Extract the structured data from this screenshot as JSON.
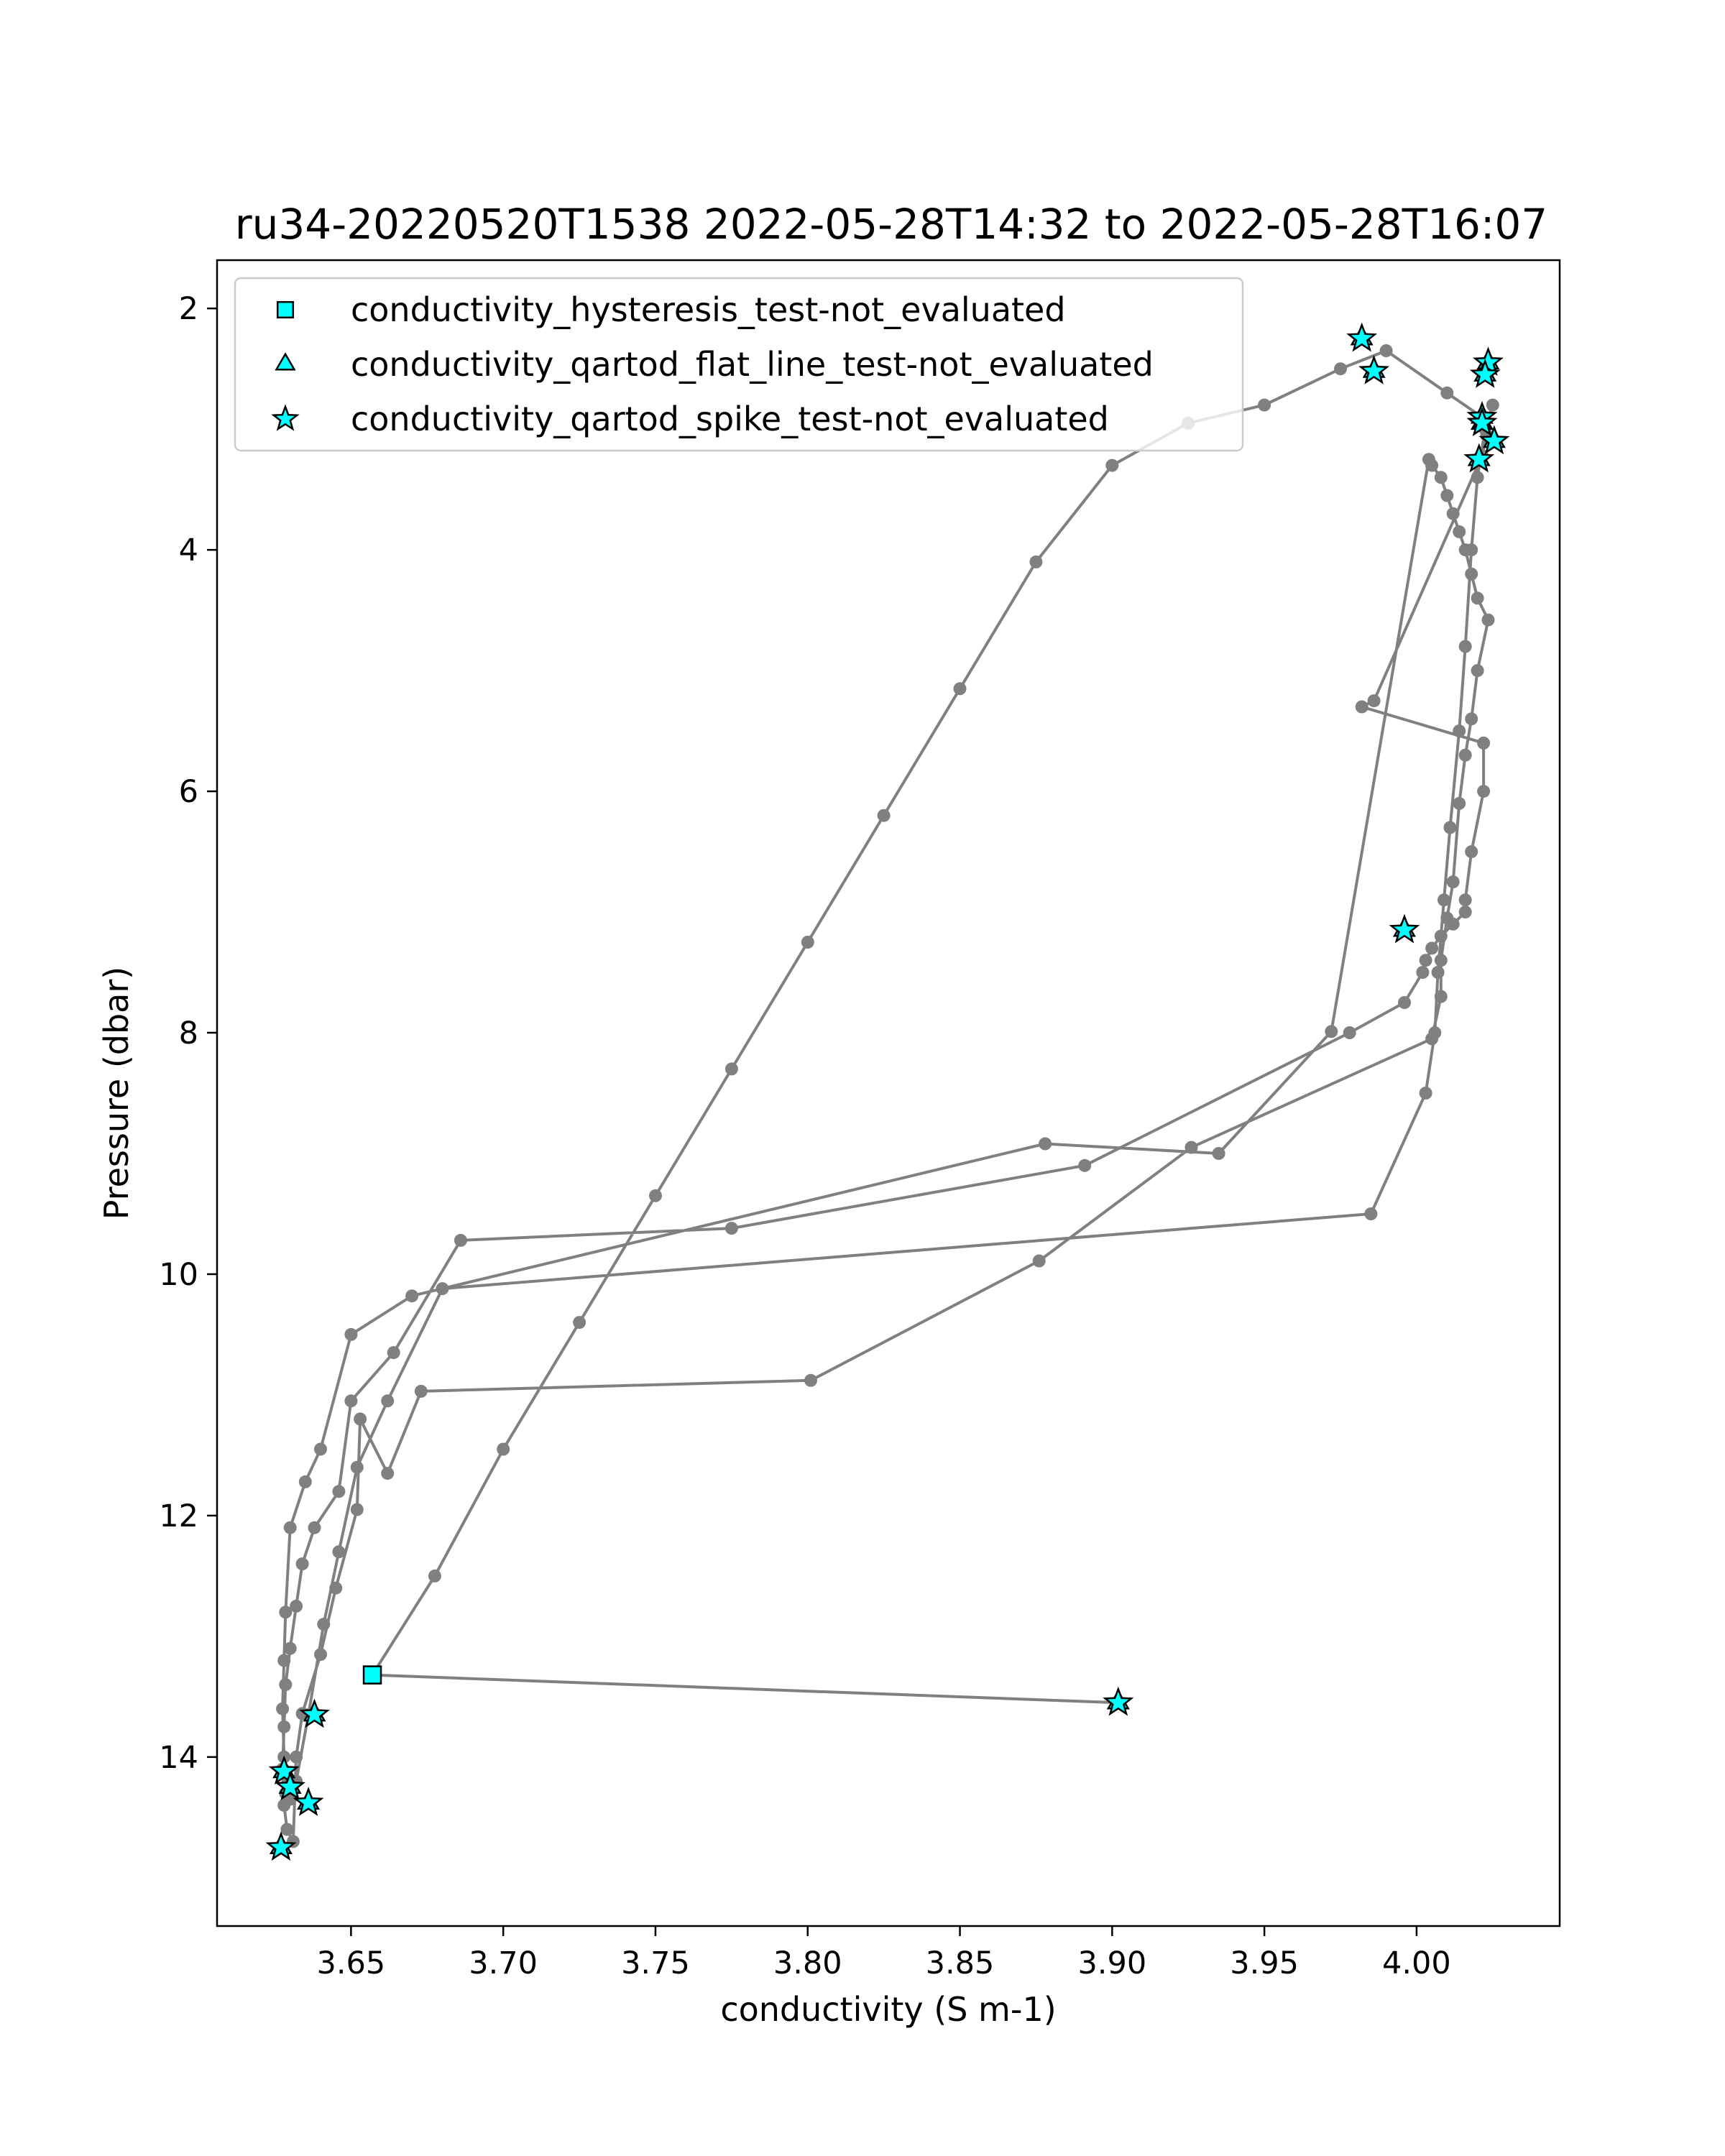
{
  "chart_data": {
    "type": "scatter",
    "title": "ru34-20220520T1538 2022-05-28T14:32 to 2022-05-28T16:07",
    "xlabel": "conductivity (S m-1)",
    "ylabel": "Pressure (dbar)",
    "xlim": [
      3.606,
      4.047
    ],
    "ylim": [
      15.4,
      1.6
    ],
    "y_inverted": true,
    "grid": false,
    "legend_position": "upper-left",
    "xticks": [
      3.65,
      3.7,
      3.75,
      3.8,
      3.85,
      3.9,
      3.95,
      4.0
    ],
    "xtick_labels": [
      "3.65",
      "3.70",
      "3.75",
      "3.80",
      "3.85",
      "3.90",
      "3.95",
      "4.00"
    ],
    "yticks": [
      2,
      4,
      6,
      8,
      10,
      12,
      14
    ],
    "ytick_labels": [
      "2",
      "4",
      "6",
      "8",
      "10",
      "12",
      "14"
    ],
    "colors": {
      "profile_line": "#808080",
      "profile_marker": "#808080",
      "flag_fill": "#00ffff",
      "flag_edge": "#000000"
    },
    "profile": {
      "name": "",
      "x": [
        3.902,
        3.657,
        3.6775,
        3.7,
        3.725,
        3.75,
        3.775,
        3.8,
        3.825,
        3.85,
        3.875,
        3.9,
        3.925,
        3.95,
        3.975,
        3.99,
        4.01,
        4.0215,
        4.023,
        4.0215,
        3.986,
        3.982,
        4.022,
        4.022,
        4.018,
        4.016,
        4.016,
        4.012,
        4.008,
        4.005,
        4.003,
        4.002,
        3.996,
        3.978,
        3.891,
        3.775,
        3.686,
        3.664,
        3.65,
        3.646,
        3.638,
        3.634,
        3.632,
        3.63,
        3.6285,
        3.628,
        3.6275,
        3.628,
        3.629,
        3.631,
        3.632,
        3.634,
        3.64,
        3.645,
        3.652,
        3.653,
        3.662,
        3.673,
        3.801,
        3.876,
        3.926,
        4.005,
        4.008,
        4.008,
        4.01,
        4.012,
        4.014,
        4.016,
        4.018,
        4.02,
        4.0235,
        4.02,
        4.018,
        4.016,
        4.014,
        4.012,
        4.01,
        4.008,
        4.005,
        4.004,
        3.972,
        3.935,
        3.878,
        3.67,
        3.65,
        3.64,
        3.635,
        3.63,
        3.6285,
        3.628,
        3.6275,
        3.628,
        3.6285,
        3.63,
        3.632,
        3.636,
        3.641,
        3.646,
        3.652,
        3.662,
        3.68,
        3.985,
        4.003,
        4.006,
        4.007,
        4.009,
        4.011,
        4.014,
        4.016,
        4.018,
        4.02,
        4.0225,
        4.025
      ],
      "y": [
        13.55,
        13.32,
        12.5,
        11.45,
        10.4,
        9.35,
        8.3,
        7.25,
        6.2,
        5.15,
        4.1,
        3.3,
        2.95,
        2.8,
        2.5,
        2.35,
        2.7,
        2.9,
        3.05,
        3.22,
        5.25,
        5.3,
        5.6,
        6.0,
        6.5,
        6.9,
        7.0,
        7.1,
        7.2,
        7.3,
        7.4,
        7.5,
        7.75,
        8.0,
        9.1,
        9.62,
        9.72,
        10.65,
        11.05,
        11.8,
        12.1,
        12.4,
        12.75,
        13.1,
        13.4,
        13.75,
        14.1,
        14.4,
        14.6,
        14.7,
        14.0,
        13.64,
        13.15,
        12.6,
        11.95,
        11.2,
        11.65,
        10.97,
        10.88,
        9.89,
        8.95,
        8.05,
        7.7,
        7.4,
        7.05,
        6.75,
        6.1,
        5.7,
        5.4,
        5.0,
        4.58,
        4.4,
        4.2,
        4.0,
        3.85,
        3.7,
        3.55,
        3.4,
        3.3,
        3.25,
        7.99,
        9.0,
        8.92,
        10.18,
        10.5,
        11.45,
        11.72,
        12.1,
        12.8,
        13.2,
        13.6,
        14.0,
        14.3,
        14.35,
        14.2,
        13.65,
        12.9,
        12.3,
        11.6,
        11.05,
        10.12,
        9.5,
        8.5,
        8.0,
        7.5,
        6.9,
        6.3,
        5.5,
        4.8,
        4.0,
        3.4,
        3.0,
        2.8
      ]
    },
    "series": [
      {
        "name": "conductivity_hysteresis_test-not_evaluated",
        "marker": "square",
        "x": [
          3.657
        ],
        "y": [
          13.32
        ]
      },
      {
        "name": "conductivity_qartod_flat_line_test-not_evaluated",
        "marker": "triangle",
        "x": [
          3.902,
          3.628,
          3.63,
          3.636,
          3.638,
          3.627,
          3.996,
          4.0205,
          4.0215,
          4.0235,
          4.0225,
          4.0255,
          4.0215,
          3.982,
          3.986
        ],
        "y": [
          13.55,
          14.12,
          14.25,
          14.38,
          13.65,
          14.75,
          7.15,
          3.25,
          2.9,
          2.45,
          2.55,
          3.1,
          2.95,
          2.25,
          2.52
        ]
      },
      {
        "name": "conductivity_qartod_spike_test-not_evaluated",
        "marker": "star",
        "x": [
          3.902,
          3.628,
          3.63,
          3.636,
          3.638,
          3.627,
          3.996,
          4.0205,
          4.0215,
          4.0235,
          4.0225,
          4.0255,
          4.0215,
          3.982,
          3.986
        ],
        "y": [
          13.55,
          14.12,
          14.25,
          14.38,
          13.65,
          14.75,
          7.15,
          3.25,
          2.9,
          2.45,
          2.55,
          3.1,
          2.95,
          2.25,
          2.52
        ]
      }
    ]
  }
}
